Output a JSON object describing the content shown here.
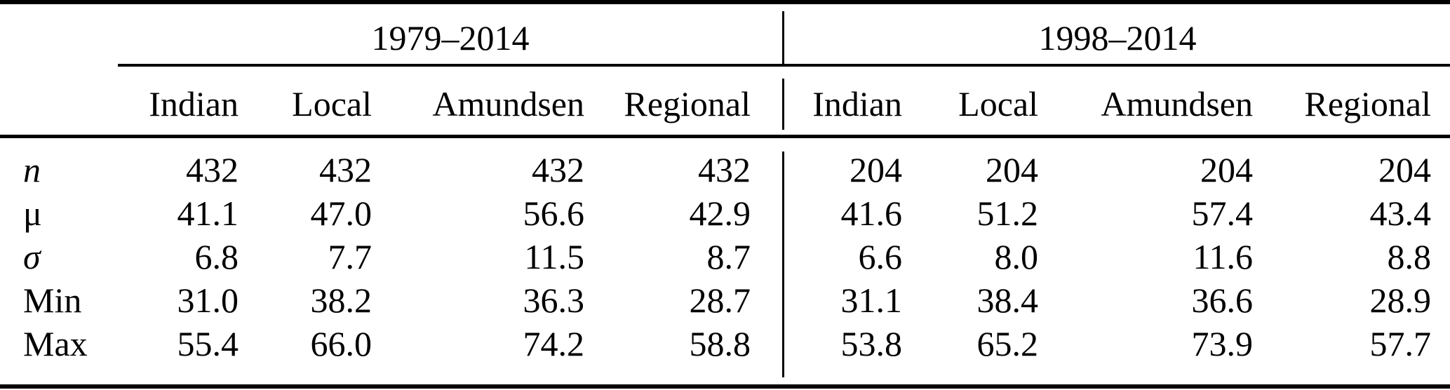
{
  "table": {
    "col_groups": [
      {
        "label": "1979–2014",
        "columns": [
          "Indian",
          "Local",
          "Amundsen",
          "Regional"
        ]
      },
      {
        "label": "1998–2014",
        "columns": [
          "Indian",
          "Local",
          "Amundsen",
          "Regional"
        ]
      }
    ],
    "rows": [
      {
        "label": "n",
        "values": [
          "432",
          "432",
          "432",
          "432",
          "204",
          "204",
          "204",
          "204"
        ]
      },
      {
        "label": "μ",
        "values": [
          "41.1",
          "47.0",
          "56.6",
          "42.9",
          "41.6",
          "51.2",
          "57.4",
          "43.4"
        ]
      },
      {
        "label": "σ",
        "values": [
          "6.8",
          "7.7",
          "11.5",
          "8.7",
          "6.6",
          "8.0",
          "11.6",
          "8.8"
        ]
      },
      {
        "label": "Min",
        "values": [
          "31.0",
          "38.2",
          "36.3",
          "28.7",
          "31.1",
          "38.4",
          "36.6",
          "28.9"
        ]
      },
      {
        "label": "Max",
        "values": [
          "55.4",
          "66.0",
          "74.2",
          "58.8",
          "53.8",
          "65.2",
          "73.9",
          "57.7"
        ]
      }
    ]
  },
  "colors": {
    "text": "#000000",
    "rule": "#000000",
    "background": "#ffffff"
  }
}
